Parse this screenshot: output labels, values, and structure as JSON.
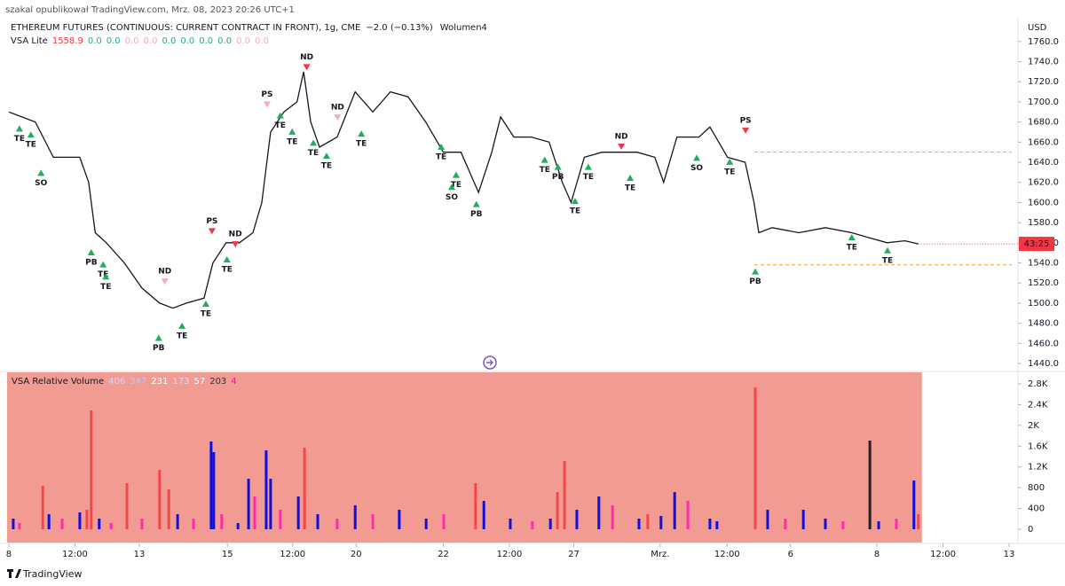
{
  "header": {
    "published": "szakal opublikował TradingView.com, Mrz. 08, 2023 20:26 UTC+1",
    "symbol": "ETHEREUM FUTURES (CONTINUOUS: CURRENT CONTRACT IN FRONT), 1g, CME",
    "change": "−2.0 (−0.13%)",
    "volume_label": "Wolumen4",
    "indicator": "VSA Lite",
    "indicator_values": [
      "1558.9",
      "0.0",
      "0.0",
      "0.0",
      "0.0",
      "0.0",
      "0.0",
      "0.0",
      "0.0",
      "0.0",
      "0.0"
    ],
    "indicator_colors": [
      "#f23645",
      "#22ab94",
      "#22ab94",
      "#f7a9c4",
      "#f7a9c4",
      "#22ab94",
      "#22ab94",
      "#22ab94",
      "#22ab94",
      "#f7a9c4",
      "#f7a9c4"
    ]
  },
  "volume_legend": {
    "title": "VSA Relative Volume",
    "values": [
      "406",
      "347",
      "231",
      "173",
      "57",
      "203",
      "4"
    ],
    "colors": [
      "#d9d6f5",
      "#c9c4f2",
      "#ffffff",
      "#e3d2f0",
      "#ffffff",
      "#333333",
      "#e91e8c"
    ]
  },
  "currency": "USD",
  "countdown": "43:25",
  "footer": "TradingView",
  "chart_data": [
    {
      "type": "line",
      "color": "#131722",
      "x": [
        0.4,
        6.4,
        10.5,
        16.5,
        18.5,
        20,
        22.5,
        26.6,
        30.6,
        34.6,
        37.6,
        40.7,
        44.7,
        46.7,
        49.7,
        52.7,
        55.8,
        57.8,
        59.8,
        62.8,
        65.8,
        67.3,
        68.9,
        70.9,
        74.9,
        79,
        83,
        87,
        91,
        95,
        99,
        103,
        107,
        110,
        112,
        115,
        119,
        123,
        126,
        128,
        131,
        135,
        139,
        143,
        147,
        149,
        152,
        157,
        159.5,
        163.5,
        167.5,
        169.5,
        170.6,
        173.6,
        179.7,
        185.7,
        191.7,
        195.7,
        199.7,
        203.8,
        206.8
      ],
      "values": [
        1690,
        1680,
        1645,
        1645,
        1620,
        1570,
        1560,
        1540,
        1515,
        1500,
        1495,
        1500,
        1505,
        1540,
        1560,
        1560,
        1570,
        1600,
        1670,
        1690,
        1700,
        1730,
        1680,
        1655,
        1665,
        1710,
        1690,
        1710,
        1705,
        1680,
        1650,
        1650,
        1610,
        1650,
        1685,
        1665,
        1665,
        1660,
        1620,
        1600,
        1645,
        1650,
        1650,
        1650,
        1645,
        1620,
        1665,
        1665,
        1675,
        1645,
        1640,
        1600,
        1570,
        1575,
        1570,
        1575,
        1570,
        1565,
        1560,
        1562,
        1558.9
      ],
      "xlim": [
        0,
        228
      ],
      "xticks": [
        {
          "value": 0.4,
          "label": "8"
        },
        {
          "value": 15.4,
          "label": "12:00"
        },
        {
          "value": 30,
          "label": "13"
        },
        {
          "value": 50,
          "label": "15"
        },
        {
          "value": 64.8,
          "label": "12:00"
        },
        {
          "value": 79.2,
          "label": "20"
        },
        {
          "value": 99,
          "label": "22"
        },
        {
          "value": 114,
          "label": "12:00"
        },
        {
          "value": 128.6,
          "label": "27"
        },
        {
          "value": 148.2,
          "label": "Mrz."
        },
        {
          "value": 163.4,
          "label": "12:00"
        },
        {
          "value": 177.8,
          "label": "6"
        },
        {
          "value": 197.4,
          "label": "8"
        },
        {
          "value": 212.4,
          "label": "12:00"
        },
        {
          "value": 227.4,
          "label": "13"
        }
      ],
      "ylim": [
        1433,
        1766
      ],
      "yticks": [
        {
          "value": 1440,
          "label": "1440.0"
        },
        {
          "value": 1460,
          "label": "1460.0"
        },
        {
          "value": 1480,
          "label": "1480.0"
        },
        {
          "value": 1500,
          "label": "1500.0"
        },
        {
          "value": 1520,
          "label": "1520.0"
        },
        {
          "value": 1540,
          "label": "1540.0"
        },
        {
          "value": 1560,
          "label": "1560.0"
        },
        {
          "value": 1580,
          "label": "1580.0"
        },
        {
          "value": 1600,
          "label": "1600.0"
        },
        {
          "value": 1620,
          "label": "1620.0"
        },
        {
          "value": 1640,
          "label": "1640.0"
        },
        {
          "value": 1660,
          "label": "1660.0"
        },
        {
          "value": 1680,
          "label": "1680.0"
        },
        {
          "value": 1700,
          "label": "1700.0"
        },
        {
          "value": 1720,
          "label": "1720.0"
        },
        {
          "value": 1740,
          "label": "1740.0"
        },
        {
          "value": 1760,
          "label": "1760.0"
        }
      ],
      "levels": [
        1650,
        1538
      ],
      "level_color": "#f5a623",
      "signals": [
        {
          "label": "TE",
          "x": 2.8,
          "value": 1674,
          "dir": "up",
          "color": "#1fae5b"
        },
        {
          "label": "TE",
          "x": 5.4,
          "value": 1668,
          "dir": "up",
          "color": "#1fae5b"
        },
        {
          "label": "SO",
          "x": 7.7,
          "value": 1630,
          "dir": "up",
          "color": "#1fae5b"
        },
        {
          "label": "PB",
          "x": 19.1,
          "value": 1551,
          "dir": "up",
          "color": "#1fae5b"
        },
        {
          "label": "TE",
          "x": 21.8,
          "value": 1539,
          "dir": "up",
          "color": "#1fae5b"
        },
        {
          "label": "TE",
          "x": 22.4,
          "value": 1527,
          "dir": "up",
          "color": "#1fae5b"
        },
        {
          "label": "PS",
          "x": 46.5,
          "value": 1571,
          "dir": "down",
          "color": "#f23645"
        },
        {
          "label": "ND",
          "x": 51.8,
          "value": 1558,
          "dir": "down",
          "color": "#f23645"
        },
        {
          "label": "TE",
          "x": 49.9,
          "value": 1544,
          "dir": "up",
          "color": "#1fae5b"
        },
        {
          "label": "ND",
          "x": 35.8,
          "value": 1521,
          "dir": "down",
          "color": "#f7a9c4"
        },
        {
          "label": "TE",
          "x": 39.7,
          "value": 1478,
          "dir": "up",
          "color": "#1fae5b"
        },
        {
          "label": "PB",
          "x": 34.4,
          "value": 1466,
          "dir": "up",
          "color": "#1fae5b"
        },
        {
          "label": "TE",
          "x": 45.1,
          "value": 1500,
          "dir": "up",
          "color": "#1fae5b"
        },
        {
          "label": "PS",
          "x": 59,
          "value": 1697,
          "dir": "down",
          "color": "#f7a9c4"
        },
        {
          "label": "TE",
          "x": 62,
          "value": 1687,
          "dir": "up",
          "color": "#1fae5b"
        },
        {
          "label": "TE",
          "x": 64.7,
          "value": 1671,
          "dir": "up",
          "color": "#1fae5b"
        },
        {
          "label": "ND",
          "x": 68,
          "value": 1734,
          "dir": "down",
          "color": "#f23645"
        },
        {
          "label": "ND",
          "x": 75,
          "value": 1684,
          "dir": "down",
          "color": "#f7a9c4"
        },
        {
          "label": "TE",
          "x": 69.5,
          "value": 1660,
          "dir": "up",
          "color": "#1fae5b"
        },
        {
          "label": "TE",
          "x": 72.5,
          "value": 1647,
          "dir": "up",
          "color": "#1fae5b"
        },
        {
          "label": "TE",
          "x": 80.4,
          "value": 1669,
          "dir": "up",
          "color": "#1fae5b"
        },
        {
          "label": "TE",
          "x": 98.5,
          "value": 1656,
          "dir": "up",
          "color": "#1fae5b"
        },
        {
          "label": "TE",
          "x": 101.9,
          "value": 1628,
          "dir": "up",
          "color": "#1fae5b"
        },
        {
          "label": "SO",
          "x": 100.9,
          "value": 1616,
          "dir": "up",
          "color": "#1fae5b"
        },
        {
          "label": "PB",
          "x": 106.5,
          "value": 1599,
          "dir": "up",
          "color": "#1fae5b"
        },
        {
          "label": "TE",
          "x": 122,
          "value": 1643,
          "dir": "up",
          "color": "#1fae5b"
        },
        {
          "label": "PB",
          "x": 125,
          "value": 1636,
          "dir": "up",
          "color": "#1fae5b"
        },
        {
          "label": "TE",
          "x": 128.9,
          "value": 1602,
          "dir": "up",
          "color": "#1fae5b"
        },
        {
          "label": "TE",
          "x": 131.9,
          "value": 1636,
          "dir": "up",
          "color": "#1fae5b"
        },
        {
          "label": "ND",
          "x": 139.4,
          "value": 1655,
          "dir": "down",
          "color": "#f23645"
        },
        {
          "label": "TE",
          "x": 141.4,
          "value": 1625,
          "dir": "up",
          "color": "#1fae5b"
        },
        {
          "label": "SO",
          "x": 156.5,
          "value": 1645,
          "dir": "up",
          "color": "#1fae5b"
        },
        {
          "label": "TE",
          "x": 164,
          "value": 1641,
          "dir": "up",
          "color": "#1fae5b"
        },
        {
          "label": "PS",
          "x": 167.6,
          "value": 1671,
          "dir": "down",
          "color": "#f23645"
        },
        {
          "label": "PB",
          "x": 169.8,
          "value": 1532,
          "dir": "up",
          "color": "#1fae5b"
        },
        {
          "label": "TE",
          "x": 191.7,
          "value": 1566,
          "dir": "up",
          "color": "#1fae5b"
        },
        {
          "label": "TE",
          "x": 199.8,
          "value": 1553,
          "dir": "up",
          "color": "#1fae5b"
        }
      ]
    },
    {
      "type": "bar",
      "background": "#f29b93",
      "x": [
        1.4,
        2.8,
        8.1,
        9.5,
        12.5,
        16.5,
        18.1,
        19.1,
        20.9,
        23.6,
        27.2,
        30.6,
        34.6,
        36.7,
        38.7,
        42.3,
        46.3,
        46.9,
        48.7,
        52.4,
        54.8,
        56.2,
        58.8,
        59.8,
        62,
        66.1,
        67.5,
        70.5,
        74.9,
        79,
        83,
        89,
        95.1,
        99.1,
        106.3,
        108.2,
        114.2,
        119.2,
        123.3,
        124.9,
        126.5,
        129.3,
        134.3,
        137.4,
        143.4,
        145.4,
        148.4,
        151.5,
        154.5,
        159.5,
        161.1,
        169.8,
        172.6,
        176.6,
        180.7,
        185.7,
        189.7,
        195.8,
        197.8,
        201.8,
        205.8,
        206.8
      ],
      "values": [
        205,
        120,
        837,
        290,
        205,
        324,
        376,
        2288,
        205,
        120,
        888,
        205,
        1144,
        768,
        290,
        205,
        1690,
        1485,
        290,
        120,
        973,
        632,
        1520,
        973,
        376,
        632,
        1571,
        290,
        205,
        461,
        290,
        376,
        205,
        290,
        888,
        546,
        205,
        154,
        205,
        717,
        1315,
        376,
        632,
        461,
        205,
        290,
        256,
        717,
        546,
        205,
        154,
        2732,
        376,
        205,
        376,
        205,
        154,
        1707,
        154,
        205,
        939,
        290
      ],
      "colors": [
        "#1010d8",
        "#ff2ea8",
        "#f44848",
        "#1010d8",
        "#ff2ea8",
        "#1010d8",
        "#f44848",
        "#f44848",
        "#1010d8",
        "#ff2ea8",
        "#f44848",
        "#ff2ea8",
        "#f44848",
        "#f44848",
        "#1010d8",
        "#ff2ea8",
        "#1010d8",
        "#1010d8",
        "#ff2ea8",
        "#1010d8",
        "#1010d8",
        "#ff2ea8",
        "#1010d8",
        "#1010d8",
        "#ff2ea8",
        "#1010d8",
        "#f44848",
        "#1010d8",
        "#ff2ea8",
        "#1010d8",
        "#ff2ea8",
        "#1010d8",
        "#1010d8",
        "#ff2ea8",
        "#f44848",
        "#1010d8",
        "#1010d8",
        "#ff2ea8",
        "#1010d8",
        "#f44848",
        "#f44848",
        "#1010d8",
        "#1010d8",
        "#ff2ea8",
        "#1010d8",
        "#f44848",
        "#1010d8",
        "#1010d8",
        "#ff2ea8",
        "#1010d8",
        "#1010d8",
        "#f44848",
        "#1010d8",
        "#ff2ea8",
        "#1010d8",
        "#1010d8",
        "#ff2ea8",
        "#222222",
        "#1010d8",
        "#ff2ea8",
        "#1010d8",
        "#f44848"
      ],
      "ylim": [
        -256,
        3022
      ],
      "yticks": [
        0,
        400,
        800,
        {
          "value": 1200,
          "label": "1.2K"
        },
        {
          "value": 1600,
          "label": "1.6K"
        },
        {
          "value": 2000,
          "label": "2K"
        },
        {
          "value": 2400,
          "label": "2.4K"
        },
        {
          "value": 2800,
          "label": "2.8K"
        }
      ]
    }
  ]
}
